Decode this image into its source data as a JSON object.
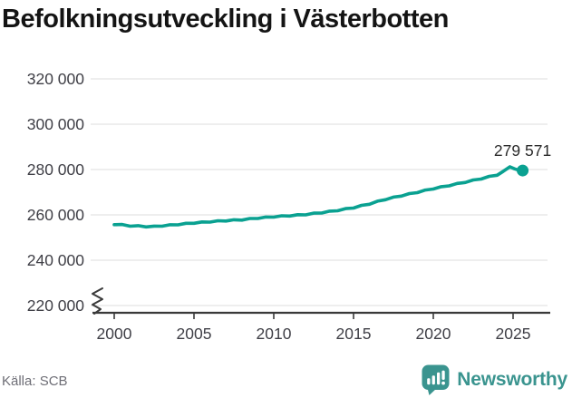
{
  "title": "Befolkningsutveckling i Västerbotten",
  "source_label": "Källa: SCB",
  "logo": {
    "text": "Newsworthy",
    "icon": "newsworthy-speech-bubble-bar-chart-icon"
  },
  "colors": {
    "line": "#0AA191",
    "logo_teal": "#3A948F",
    "grid": "#E3E3E3",
    "axis": "#3A3A3A",
    "tick_label": "#3F3F46",
    "title": "#141414",
    "source": "#6E6E76",
    "annotation": "#2B2B2B",
    "background": "#FFFFFF"
  },
  "chart_data": {
    "type": "line",
    "title": "Befolkningsutveckling i Västerbotten",
    "xlabel": "",
    "ylabel": "",
    "x_ticks": [
      2000,
      2005,
      2010,
      2015,
      2020,
      2025
    ],
    "x_tick_labels": [
      "2000",
      "2005",
      "2010",
      "2015",
      "2020",
      "2025"
    ],
    "y_ticks": [
      220000,
      240000,
      260000,
      280000,
      300000,
      320000
    ],
    "y_tick_labels": [
      "220 000",
      "240 000",
      "260 000",
      "280 000",
      "300 000",
      "320 000"
    ],
    "xlim": [
      1998.5,
      2027.2
    ],
    "ylim": [
      220000,
      320000
    ],
    "y_axis_break": true,
    "grid": "horizontal",
    "legend": "none",
    "end_label": "279 571",
    "end_value": 279571,
    "series": [
      {
        "name": "Befolkning i Västerbotten",
        "x": [
          2000,
          2000.5,
          2001,
          2001.5,
          2002,
          2002.5,
          2003,
          2003.5,
          2004,
          2004.5,
          2005,
          2005.5,
          2006,
          2006.5,
          2007,
          2007.5,
          2008,
          2008.5,
          2009,
          2009.5,
          2010,
          2010.5,
          2011,
          2011.5,
          2012,
          2012.5,
          2013,
          2013.5,
          2014,
          2014.5,
          2015,
          2015.5,
          2016,
          2016.5,
          2017,
          2017.5,
          2018,
          2018.5,
          2019,
          2019.5,
          2020,
          2020.5,
          2021,
          2021.5,
          2022,
          2022.5,
          2023,
          2023.5,
          2024,
          2024.4,
          2024.8,
          2025.1,
          2025.35,
          2025.6
        ],
        "y": [
          255700,
          255750,
          255000,
          255250,
          254700,
          255050,
          255000,
          255650,
          255600,
          256300,
          256300,
          256900,
          256800,
          257400,
          257300,
          257850,
          257700,
          258400,
          258400,
          259050,
          259000,
          259600,
          259500,
          260100,
          260000,
          260750,
          260800,
          261650,
          261800,
          262750,
          263000,
          264200,
          264700,
          266050,
          266700,
          267850,
          268300,
          269400,
          269800,
          270950,
          271400,
          272450,
          272800,
          273900,
          274300,
          275400,
          275800,
          277000,
          277500,
          279300,
          281200,
          280300,
          279750,
          279571
        ]
      }
    ]
  }
}
